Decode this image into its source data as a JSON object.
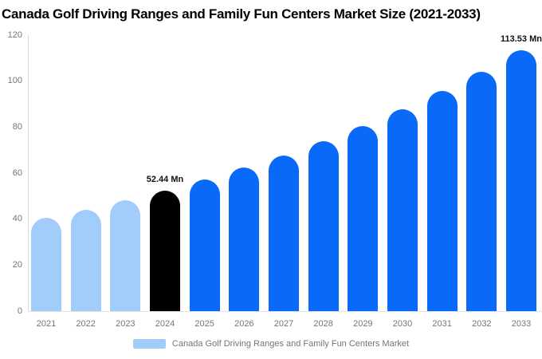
{
  "chart_data": {
    "type": "bar",
    "title": "Canada Golf Driving Ranges and Family Fun Centers Market Size (2021-2033)",
    "categories": [
      "2021",
      "2022",
      "2023",
      "2024",
      "2025",
      "2026",
      "2027",
      "2028",
      "2029",
      "2030",
      "2031",
      "2032",
      "2033"
    ],
    "values": [
      40.5,
      44.2,
      48.1,
      52.44,
      57.1,
      62.3,
      67.8,
      73.9,
      80.5,
      87.8,
      95.6,
      104.2,
      113.53
    ],
    "series_name": "Canada Golf Driving Ranges and Family Fun Centers Market",
    "units": "Mn",
    "ylim": [
      0,
      120
    ],
    "yticks": [
      0,
      20,
      40,
      60,
      80,
      100,
      120
    ],
    "grid": "none",
    "legend_position": "bottom-center",
    "bar_colors": [
      "#A2CCF9",
      "#A2CCF9",
      "#A2CCF9",
      "#000000",
      "#0969F8",
      "#0969F8",
      "#0969F8",
      "#0969F8",
      "#0969F8",
      "#0969F8",
      "#0969F8",
      "#0969F8",
      "#0969F8"
    ],
    "annotations": [
      {
        "category": "2024",
        "text": "52.44 Mn"
      },
      {
        "category": "2033",
        "text": "113.53 Mn"
      }
    ],
    "colors": {
      "historical_bar": "#A2CCF9",
      "base_year_bar": "#000000",
      "forecast_bar": "#0969F8",
      "axis_text": "#757575",
      "annotation_text": "#111111",
      "axis_line": "#d9d9d9"
    }
  }
}
